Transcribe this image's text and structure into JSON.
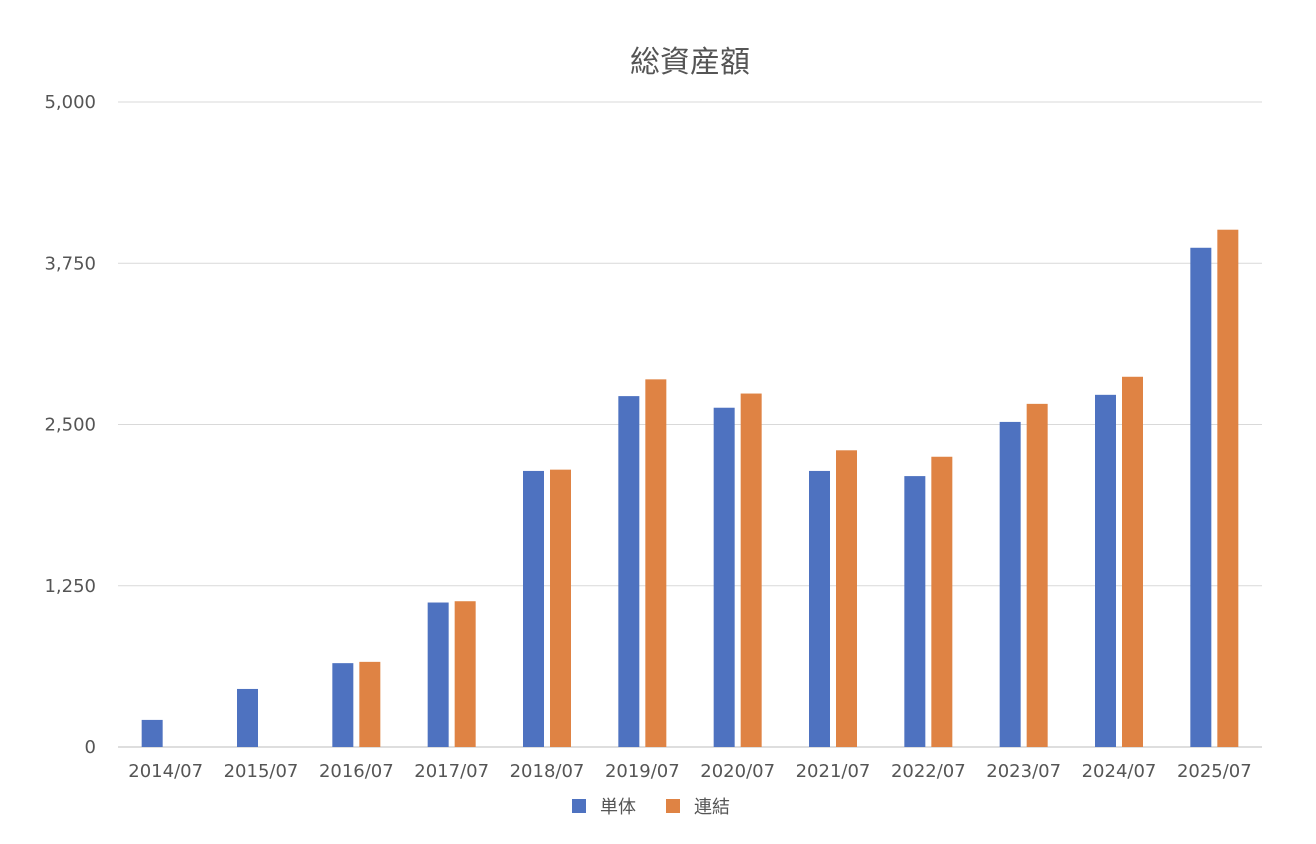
{
  "chart_data": {
    "type": "bar",
    "title": "総資産額",
    "categories": [
      "2014/07",
      "2015/07",
      "2016/07",
      "2017/07",
      "2018/07",
      "2019/07",
      "2020/07",
      "2021/07",
      "2022/07",
      "2023/07",
      "2024/07",
      "2025/07"
    ],
    "series": [
      {
        "name": "単体",
        "color": "#4e72c0",
        "values": [
          210,
          450,
          650,
          1120,
          2140,
          2720,
          2630,
          2140,
          2100,
          2520,
          2730,
          3870
        ]
      },
      {
        "name": "連結",
        "color": "#df8344",
        "values": [
          null,
          null,
          660,
          1130,
          2150,
          2850,
          2740,
          2300,
          2250,
          2660,
          2870,
          4010
        ]
      }
    ],
    "ylim": [
      0,
      5000
    ],
    "yticks": [
      0,
      1250,
      2500,
      3750,
      5000
    ],
    "ytick_labels": [
      "0",
      "1,250",
      "2,500",
      "3,750",
      "5,000"
    ],
    "xlabel": "",
    "ylabel": "",
    "grid": true,
    "legend_position": "bottom"
  }
}
